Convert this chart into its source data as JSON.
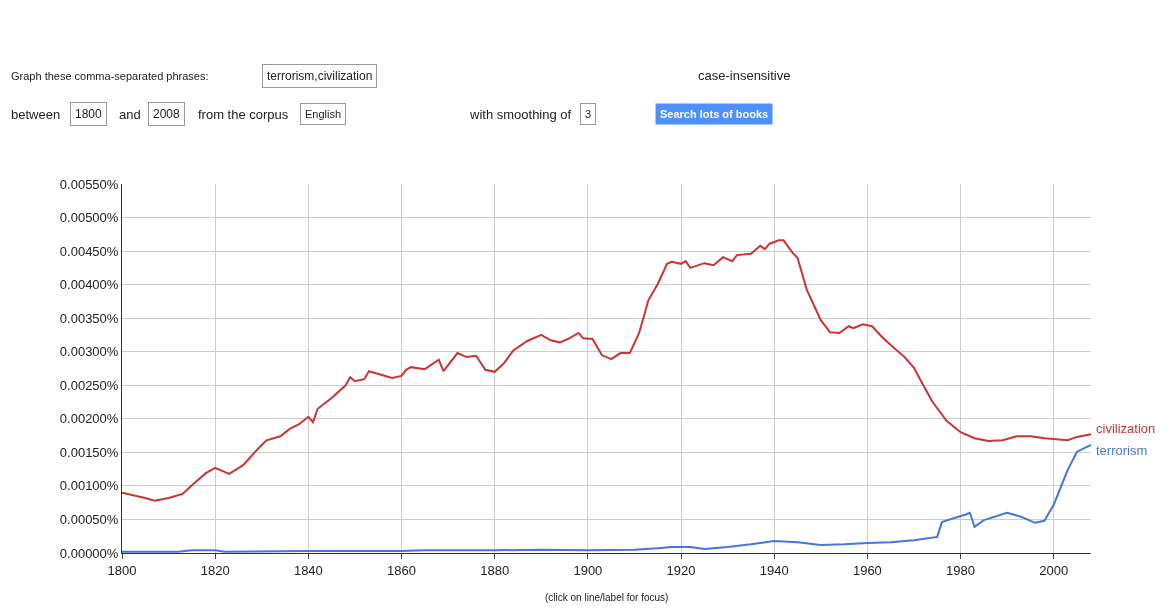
{
  "chart_data": {
    "type": "line",
    "annotations": [
      "Graph these comma-separated phrases:",
      "terrorism,civilization",
      "case-insensitive",
      "between",
      "1800",
      "and",
      "2008",
      "from the corpus",
      "English",
      "with smoothing of",
      "3",
      "Search lots of books",
      "(click on line/label for focus)"
    ],
    "series": [
      {
        "name": "civilization",
        "color": "#cc3333",
        "x": [
          1800,
          1805,
          1807,
          1810,
          1813,
          1815,
          1818,
          1820,
          1823,
          1826,
          1829,
          1831,
          1834,
          1836,
          1838,
          1840,
          1841,
          1842,
          1845,
          1848,
          1849,
          1850,
          1852,
          1853,
          1856,
          1858,
          1860,
          1861,
          1862,
          1865,
          1868,
          1869,
          1872,
          1874,
          1876,
          1878,
          1880,
          1882,
          1884,
          1887,
          1890,
          1892,
          1894,
          1896,
          1898,
          1899,
          1901,
          1903,
          1905,
          1907,
          1909,
          1911,
          1913,
          1915,
          1917,
          1918,
          1920,
          1921,
          1922,
          1925,
          1927,
          1929,
          1931,
          1932,
          1935,
          1937,
          1938,
          1939,
          1941,
          1942,
          1944,
          1945,
          1947,
          1950,
          1952,
          1954,
          1956,
          1957,
          1959,
          1961,
          1963,
          1965,
          1968,
          1970,
          1972,
          1974,
          1977,
          1980,
          1983,
          1986,
          1989,
          1992,
          1995,
          1998,
          2000,
          2003,
          2005,
          2008
        ],
        "values": [
          0.0009,
          0.00082,
          0.00078,
          0.00082,
          0.00088,
          0.00101,
          0.00119,
          0.00127,
          0.00118,
          0.00131,
          0.00154,
          0.00168,
          0.00174,
          0.00185,
          0.00192,
          0.00203,
          0.00195,
          0.00215,
          0.00231,
          0.0025,
          0.00262,
          0.00256,
          0.00259,
          0.00271,
          0.00265,
          0.00261,
          0.00264,
          0.00273,
          0.00277,
          0.00274,
          0.00288,
          0.00271,
          0.00298,
          0.00292,
          0.00294,
          0.00273,
          0.0027,
          0.00283,
          0.00302,
          0.00316,
          0.00325,
          0.00317,
          0.00314,
          0.0032,
          0.00328,
          0.0032,
          0.00319,
          0.00295,
          0.00289,
          0.00298,
          0.00298,
          0.00328,
          0.00377,
          0.00401,
          0.00431,
          0.00434,
          0.00431,
          0.00435,
          0.00425,
          0.00432,
          0.00429,
          0.00441,
          0.00435,
          0.00444,
          0.00446,
          0.00458,
          0.00453,
          0.00461,
          0.00466,
          0.00466,
          0.00447,
          0.0044,
          0.00392,
          0.00347,
          0.00329,
          0.00328,
          0.00338,
          0.00335,
          0.00341,
          0.00338,
          0.00323,
          0.0031,
          0.00292,
          0.00276,
          0.0025,
          0.00225,
          0.00197,
          0.0018,
          0.00171,
          0.00167,
          0.00168,
          0.00174,
          0.00174,
          0.00171,
          0.0017,
          0.00168,
          0.00173,
          0.00177
        ]
      },
      {
        "name": "terrorism",
        "color": "#4477dd",
        "x": [
          1800,
          1812,
          1815,
          1820,
          1822,
          1840,
          1860,
          1865,
          1880,
          1890,
          1900,
          1910,
          1915,
          1918,
          1922,
          1925,
          1930,
          1935,
          1940,
          1945,
          1950,
          1955,
          1960,
          1965,
          1970,
          1975,
          1976,
          1979,
          1981,
          1982,
          1983,
          1985,
          1990,
          1993,
          1996,
          1998,
          2000,
          2003,
          2005,
          2008
        ],
        "values": [
          2e-05,
          2e-05,
          4e-05,
          4e-05,
          2e-05,
          3e-05,
          3e-05,
          4e-05,
          4e-05,
          5e-05,
          4e-05,
          5e-05,
          7e-05,
          9e-05,
          9e-05,
          6e-05,
          9e-05,
          0.00013,
          0.00018,
          0.00016,
          0.00012,
          0.00013,
          0.00015,
          0.00016,
          0.00019,
          0.00024,
          0.00046,
          0.00053,
          0.00057,
          0.0006,
          0.00039,
          0.00049,
          0.0006,
          0.00054,
          0.00045,
          0.00048,
          0.00072,
          0.00124,
          0.00151,
          0.00161
        ]
      }
    ],
    "xlim": [
      1800,
      2008
    ],
    "xticks": [
      1800,
      1820,
      1840,
      1860,
      1880,
      1900,
      1920,
      1940,
      1960,
      1980,
      2000
    ],
    "ylim": [
      0,
      0.0055
    ],
    "yticks": [
      {
        "value": 0,
        "label": "0.00000%"
      },
      {
        "value": 0.0005,
        "label": "0.00050%"
      },
      {
        "value": 0.001,
        "label": "0.00100%"
      },
      {
        "value": 0.0015,
        "label": "0.00150%"
      },
      {
        "value": 0.002,
        "label": "0.00200%"
      },
      {
        "value": 0.0025,
        "label": "0.00250%"
      },
      {
        "value": 0.003,
        "label": "0.00300%"
      },
      {
        "value": 0.0035,
        "label": "0.00350%"
      },
      {
        "value": 0.004,
        "label": "0.00400%"
      },
      {
        "value": 0.0045,
        "label": "0.00450%"
      },
      {
        "value": 0.005,
        "label": "0.00500%"
      },
      {
        "value": 0.0055,
        "label": "0.00550%"
      }
    ],
    "grid": true,
    "legend": false
  }
}
